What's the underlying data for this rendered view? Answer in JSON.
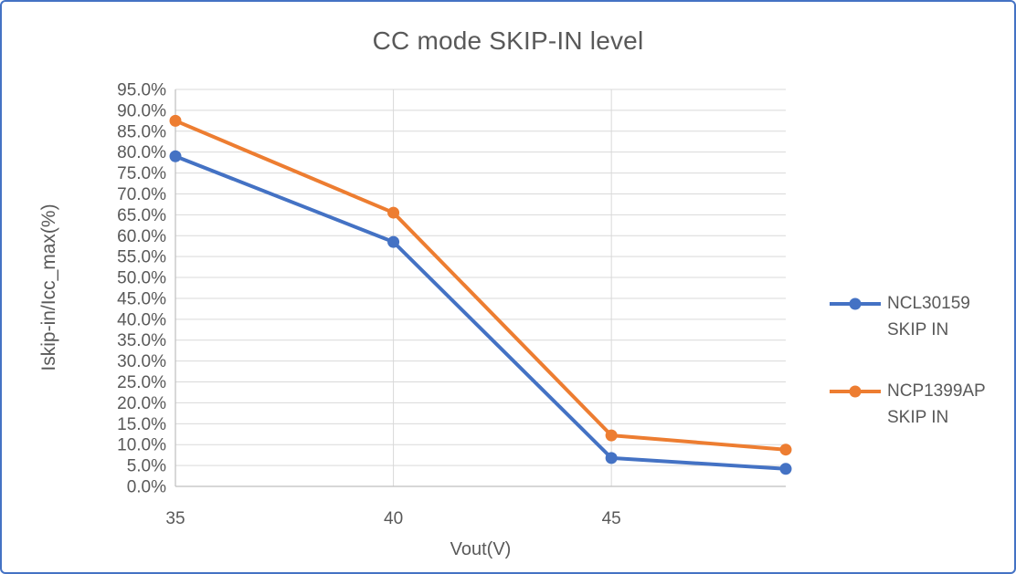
{
  "window": {
    "background": "#FFFFFF",
    "border_color": "#4472C4"
  },
  "chart_data": {
    "type": "line",
    "title": "CC mode SKIP-IN level",
    "xlabel": "Vout(V)",
    "ylabel": "Iskip-in/Icc_max(%)",
    "x": [
      35,
      40,
      45,
      49
    ],
    "xlim": [
      35,
      49
    ],
    "ylim": [
      0,
      95
    ],
    "x_ticks": [
      35,
      40,
      45
    ],
    "x_tick_labels": [
      "35",
      "40",
      "45"
    ],
    "x_gridlines": [
      40,
      45
    ],
    "y_ticks": [
      0,
      5,
      10,
      15,
      20,
      25,
      30,
      35,
      40,
      45,
      50,
      55,
      60,
      65,
      70,
      75,
      80,
      85,
      90,
      95
    ],
    "y_tick_labels": [
      "0.0%",
      "5.0%",
      "10.0%",
      "15.0%",
      "20.0%",
      "25.0%",
      "30.0%",
      "35.0%",
      "40.0%",
      "45.0%",
      "50.0%",
      "55.0%",
      "60.0%",
      "65.0%",
      "70.0%",
      "75.0%",
      "80.0%",
      "85.0%",
      "90.0%",
      "95.0%"
    ],
    "grid": true,
    "legend_position": "right",
    "series": [
      {
        "name": "NCL30159 SKIP IN",
        "name_lines": [
          "NCL30159",
          "SKIP IN"
        ],
        "color": "#4472C4",
        "marker": "circle",
        "values": [
          79.0,
          58.5,
          6.8,
          4.2
        ]
      },
      {
        "name": "NCP1399AP SKIP IN",
        "name_lines": [
          "NCP1399AP",
          "SKIP IN"
        ],
        "color": "#ED7D31",
        "marker": "circle",
        "values": [
          87.5,
          65.5,
          12.2,
          8.8
        ]
      }
    ],
    "colors": {
      "gridline": "#D9D9D9",
      "axis_line": "#BFBFBF",
      "text": "#595959"
    }
  }
}
